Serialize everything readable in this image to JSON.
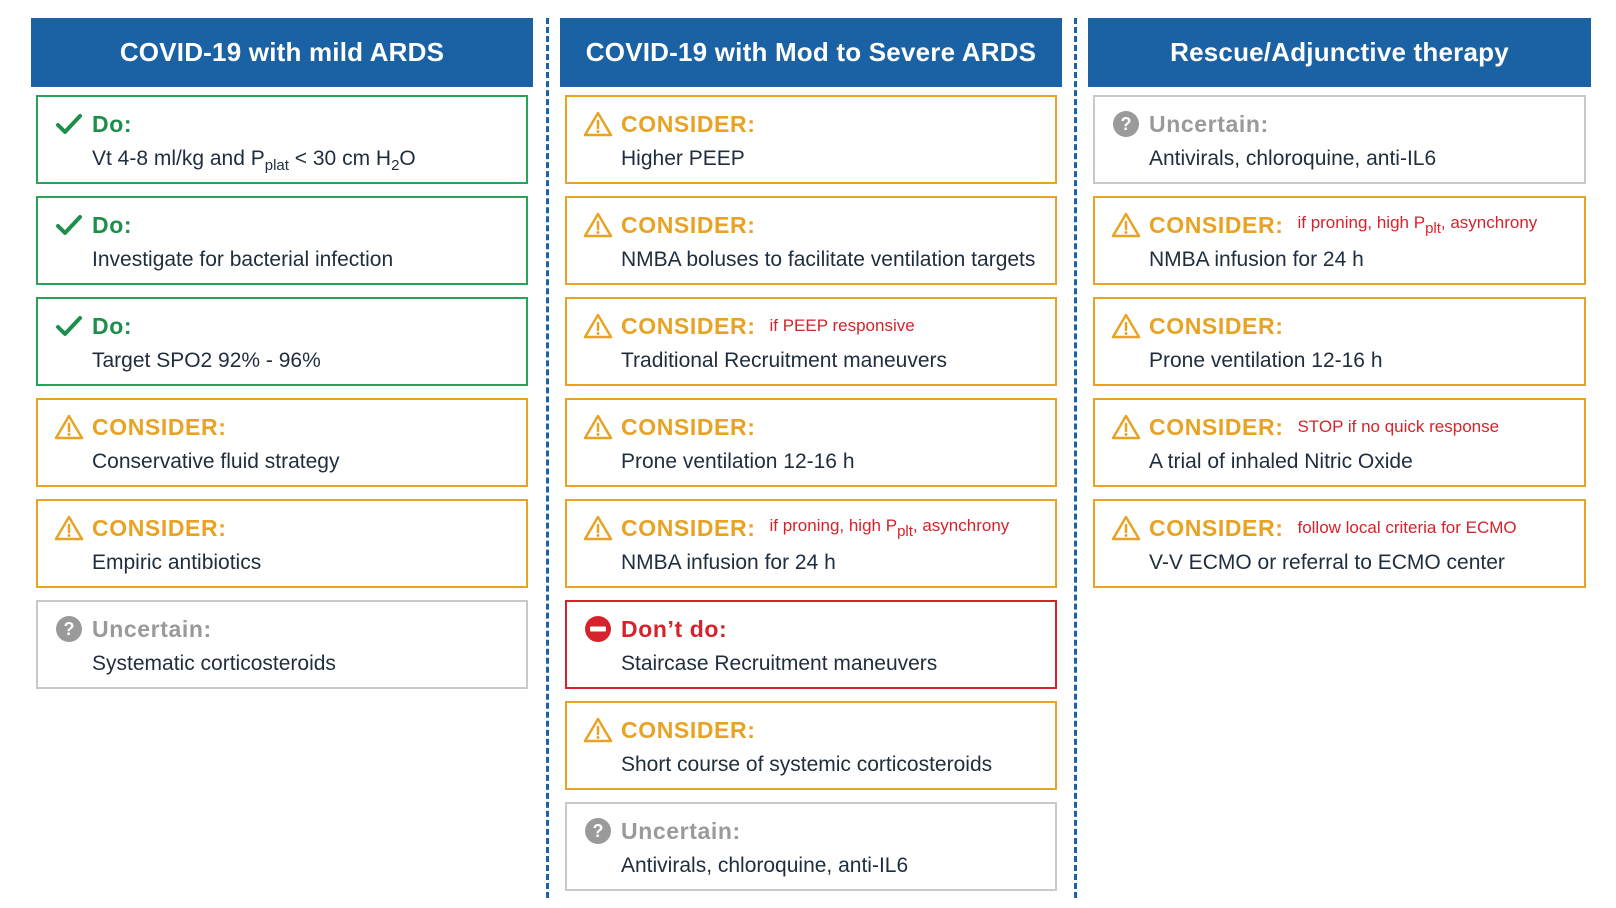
{
  "columns": [
    {
      "title": "COVID-19 with mild ARDS",
      "cards": [
        {
          "kind": "do",
          "label": "Do:",
          "text_pre": "Vt 4-8 ml/kg and P",
          "sub1": "plat",
          "text_mid": " < 30 cm H",
          "sub2": "2",
          "text_post": "O"
        },
        {
          "kind": "do",
          "label": "Do:",
          "text": "Investigate for bacterial infection"
        },
        {
          "kind": "do",
          "label": "Do:",
          "text": "Target SPO2 92% - 96%"
        },
        {
          "kind": "consider",
          "label": "CONSIDER:",
          "text": "Conservative fluid strategy"
        },
        {
          "kind": "consider",
          "label": "CONSIDER:",
          "text": "Empiric antibiotics"
        },
        {
          "kind": "uncertain",
          "label": "Uncertain:",
          "text": "Systematic corticosteroids"
        }
      ]
    },
    {
      "title": "COVID-19 with Mod to Severe ARDS",
      "cards": [
        {
          "kind": "consider",
          "label": "CONSIDER:",
          "text": "Higher PEEP"
        },
        {
          "kind": "consider",
          "label": "CONSIDER:",
          "text": "NMBA boluses to facilitate ventilation  targets"
        },
        {
          "kind": "consider",
          "label": "CONSIDER:",
          "note": "if PEEP responsive",
          "text": "Traditional Recruitment maneuvers"
        },
        {
          "kind": "consider",
          "label": "CONSIDER:",
          "text": "Prone ventilation 12-16 h"
        },
        {
          "kind": "consider",
          "label": "CONSIDER:",
          "note_pre": "if proning, high P",
          "note_sub": "plt",
          "note_post": ", asynchrony",
          "text": "NMBA infusion for 24 h"
        },
        {
          "kind": "dont",
          "label": "Don’t do:",
          "text": "Staircase Recruitment maneuvers"
        },
        {
          "kind": "consider",
          "label": "CONSIDER:",
          "text": "Short course of systemic corticosteroids"
        },
        {
          "kind": "uncertain",
          "label": "Uncertain:",
          "text": "Antivirals, chloroquine, anti-IL6"
        }
      ]
    },
    {
      "title": "Rescue/Adjunctive therapy",
      "cards": [
        {
          "kind": "uncertain",
          "label": "Uncertain:",
          "text": "Antivirals, chloroquine, anti-IL6"
        },
        {
          "kind": "consider",
          "label": "CONSIDER:",
          "note_pre": "if proning, high P",
          "note_sub": "plt",
          "note_post": ", asynchrony",
          "text": "NMBA infusion for 24 h"
        },
        {
          "kind": "consider",
          "label": "CONSIDER:",
          "text": "Prone ventilation 12-16 h"
        },
        {
          "kind": "consider",
          "label": "CONSIDER:",
          "note": "STOP if no quick response",
          "text": "A trial of inhaled Nitric Oxide"
        },
        {
          "kind": "consider",
          "label": "CONSIDER:",
          "note": "follow local criteria for ECMO",
          "text": "V-V ECMO or referral to ECMO center"
        }
      ]
    }
  ],
  "icons": {
    "do": "check-icon",
    "consider": "warning-icon",
    "uncertain": "question-icon",
    "dont": "no-entry-icon"
  },
  "colors": {
    "header_bg": "#1b62a5",
    "do": "#27a35a",
    "consider": "#e8a325",
    "uncertain": "#9a9a9a",
    "dont": "#d6232b"
  }
}
